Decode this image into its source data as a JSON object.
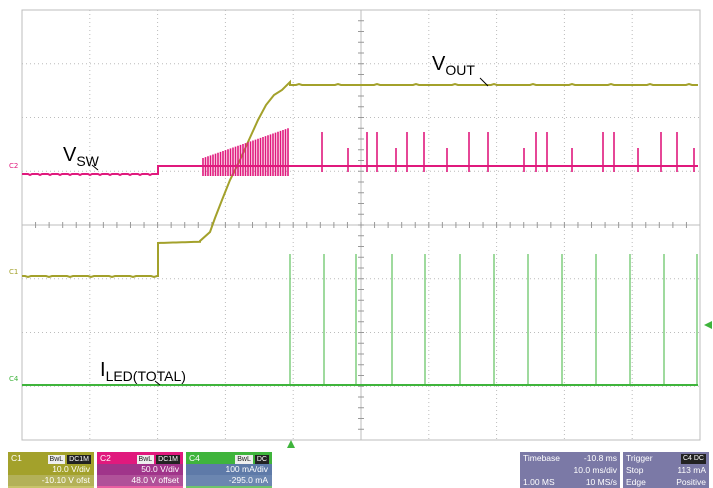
{
  "traces": {
    "vout": {
      "label_main": "V",
      "label_sub": "OUT"
    },
    "vsw": {
      "label_main": "V",
      "label_sub": "SW"
    },
    "iled": {
      "label_main": "I",
      "label_sub": "LED(TOTAL)"
    }
  },
  "channel_markers": {
    "c2": "C2",
    "c1": "C1",
    "c4": "C4"
  },
  "channels": [
    {
      "name": "C1",
      "badge1": "BwL",
      "badge2": "DC1M",
      "scale": "10.0 V/div",
      "offset": "-10.10 V ofst",
      "color": "#a3a12b"
    },
    {
      "name": "C2",
      "badge1": "BwL",
      "badge2": "DC1M",
      "scale": "50.0 V/div",
      "offset": "48.0 V offset",
      "color": "#e0197d"
    },
    {
      "name": "C4",
      "badge1": "BwL",
      "badge2": "DC",
      "scale": "100 mA/div",
      "offset": "-295.0 mA",
      "color": "#3fb43c"
    }
  ],
  "timebase": {
    "label": "Timebase",
    "delay": "-10.8 ms",
    "scale": "10.0 ms/div",
    "samples": "1.00 MS",
    "rate": "10 MS/s"
  },
  "trigger": {
    "label": "Trigger",
    "badge": "C4 DC",
    "mode": "Stop",
    "level": "113 mA",
    "type": "Edge",
    "slope": "Positive"
  },
  "colors": {
    "c1": "#a3a12b",
    "c2": "#e0197d",
    "c4": "#3fb43c",
    "grid": "#bcbcbc",
    "panel": "#7b79a6"
  }
}
